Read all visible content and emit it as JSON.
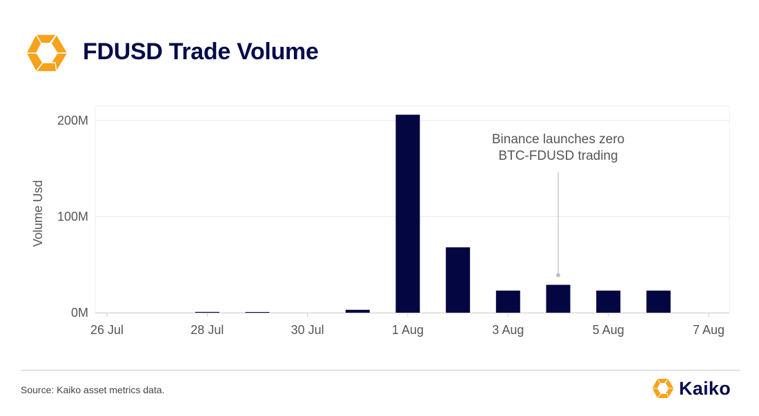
{
  "header": {
    "title": "FDUSD Trade Volume"
  },
  "colors": {
    "bar": "#030641",
    "title": "#050a4a",
    "brand_orange": "#f7a21b",
    "grid": "#e9e9e9",
    "text": "#555555"
  },
  "chart_data": {
    "type": "bar",
    "ylabel": "Volume Usd",
    "xlabel": "",
    "y_ticks": [
      {
        "value": 0,
        "label": "0M"
      },
      {
        "value": 100,
        "label": "100M"
      },
      {
        "value": 200,
        "label": "200M"
      }
    ],
    "ylim": [
      0,
      215
    ],
    "x_range": [
      "2023-07-26",
      "2023-08-07"
    ],
    "x_ticks": [
      {
        "date": "2023-07-26",
        "label": "26 Jul"
      },
      {
        "date": "2023-07-28",
        "label": "28 Jul"
      },
      {
        "date": "2023-07-30",
        "label": "30 Jul"
      },
      {
        "date": "2023-08-01",
        "label": "1 Aug"
      },
      {
        "date": "2023-08-03",
        "label": "3 Aug"
      },
      {
        "date": "2023-08-05",
        "label": "5 Aug"
      },
      {
        "date": "2023-08-07",
        "label": "7 Aug"
      }
    ],
    "unit": "M",
    "points": [
      {
        "date": "2023-07-28",
        "value": 0.8
      },
      {
        "date": "2023-07-29",
        "value": 0.6
      },
      {
        "date": "2023-07-31",
        "value": 3
      },
      {
        "date": "2023-08-01",
        "value": 206
      },
      {
        "date": "2023-08-02",
        "value": 68
      },
      {
        "date": "2023-08-03",
        "value": 23
      },
      {
        "date": "2023-08-04",
        "value": 29
      },
      {
        "date": "2023-08-05",
        "value": 23
      },
      {
        "date": "2023-08-06",
        "value": 23
      }
    ],
    "grid": true,
    "annotation": {
      "date": "2023-08-04",
      "lines": [
        "Binance launches zero",
        "BTC-FDUSD trading"
      ]
    }
  },
  "footer": {
    "source": "Source: Kaiko asset metrics data.",
    "brand": "Kaiko"
  }
}
